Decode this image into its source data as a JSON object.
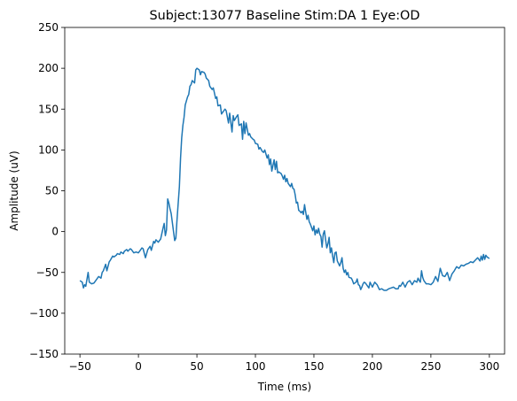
{
  "chart_data": {
    "type": "line",
    "title": "Subject:13077 Baseline Stim:DA 1 Eye:OD",
    "xlabel": "Time (ms)",
    "ylabel": "Amplitude (uV)",
    "xlim": [
      -63,
      313
    ],
    "ylim": [
      -150,
      250
    ],
    "xticks": [
      -50,
      0,
      50,
      100,
      150,
      200,
      250,
      300
    ],
    "yticks": [
      -150,
      -100,
      -50,
      0,
      50,
      100,
      150,
      200,
      250
    ],
    "xtick_labels": [
      "−50",
      "0",
      "50",
      "100",
      "150",
      "200",
      "250",
      "300"
    ],
    "ytick_labels": [
      "−150",
      "−100",
      "−50",
      "0",
      "50",
      "100",
      "150",
      "200",
      "250"
    ],
    "grid": false,
    "line_color": "#1f77b4",
    "series": [
      {
        "x": [
          -50,
          -48,
          -47,
          -46,
          -45,
          -43,
          -42,
          -40,
          -38,
          -36,
          -34,
          -32,
          -31,
          -30,
          -28,
          -27,
          -25,
          -24,
          -22,
          -21,
          -19,
          -18,
          -16,
          -15,
          -13,
          -12,
          -10,
          -9,
          -7,
          -6,
          -4,
          -2,
          0,
          2,
          3,
          4,
          6,
          8,
          10,
          11,
          13,
          14,
          15,
          17,
          19,
          21,
          22,
          23,
          24,
          25,
          26,
          27,
          28,
          30,
          31,
          32,
          33,
          35,
          36,
          37,
          38,
          39,
          40,
          42,
          43,
          44,
          45,
          46,
          48,
          49,
          50,
          52,
          53,
          54,
          56,
          57,
          58,
          60,
          61,
          63,
          64,
          66,
          67,
          68,
          70,
          71,
          72,
          74,
          75,
          77,
          78,
          80,
          81,
          82,
          84,
          85,
          86,
          88,
          89,
          90,
          91,
          92,
          94,
          95,
          96,
          98,
          99,
          100,
          102,
          103,
          104,
          106,
          107,
          108,
          110,
          111,
          112,
          113,
          114,
          116,
          117,
          118,
          119,
          120,
          122,
          123,
          124,
          125,
          126,
          127,
          128,
          130,
          131,
          132,
          133,
          134,
          135,
          136,
          137,
          138,
          139,
          140,
          141,
          142,
          143,
          144,
          145,
          146,
          147,
          148,
          149,
          150,
          151,
          152,
          153,
          154,
          155,
          156,
          157,
          158,
          159,
          160,
          161,
          162,
          163,
          164,
          165,
          166,
          167,
          168,
          169,
          170,
          172,
          173,
          174,
          175,
          176,
          177,
          178,
          179,
          180,
          182,
          183,
          184,
          186,
          187,
          188,
          189,
          190,
          191,
          192,
          193,
          194,
          196,
          197,
          198,
          200,
          202,
          204,
          206,
          208,
          210,
          212,
          214,
          216,
          218,
          220,
          222,
          223,
          224,
          226,
          228,
          230,
          232,
          234,
          236,
          238,
          239,
          240,
          241,
          242,
          243,
          244,
          246,
          248,
          250,
          252,
          254,
          256,
          258,
          260,
          262,
          264,
          266,
          268,
          270,
          272,
          274,
          276,
          278,
          280,
          282,
          284,
          286,
          288,
          290,
          292,
          293,
          294,
          295,
          296,
          297,
          298,
          300
        ],
        "y": [
          -60,
          -62,
          -69,
          -65,
          -67,
          -50,
          -62,
          -64,
          -63,
          -59,
          -55,
          -57,
          -50,
          -48,
          -40,
          -48,
          -37,
          -35,
          -30,
          -31,
          -29,
          -27,
          -28,
          -25,
          -27,
          -24,
          -22,
          -24,
          -21,
          -22,
          -26,
          -25,
          -26,
          -22,
          -20,
          -21,
          -32,
          -22,
          -18,
          -23,
          -12,
          -14,
          -10,
          -13,
          -9,
          4,
          10,
          -5,
          2,
          40,
          35,
          28,
          22,
          0,
          -11,
          -8,
          15,
          55,
          90,
          115,
          130,
          140,
          155,
          165,
          168,
          178,
          180,
          185,
          182,
          198,
          200,
          198,
          192,
          196,
          195,
          193,
          188,
          185,
          178,
          174,
          176,
          163,
          165,
          154,
          155,
          144,
          146,
          150,
          148,
          133,
          145,
          122,
          142,
          136,
          141,
          143,
          130,
          132,
          113,
          135,
          120,
          133,
          118,
          120,
          116,
          113,
          112,
          108,
          107,
          101,
          103,
          98,
          97,
          100,
          90,
          94,
          82,
          89,
          74,
          88,
          76,
          86,
          72,
          73,
          71,
          68,
          64,
          69,
          61,
          65,
          59,
          55,
          59,
          53,
          52,
          45,
          35,
          36,
          26,
          25,
          23,
          25,
          21,
          33,
          24,
          15,
          20,
          12,
          9,
          5,
          1,
          7,
          -4,
          2,
          -2,
          4,
          -3,
          -6,
          -19,
          -3,
          1,
          -10,
          -20,
          -15,
          -7,
          -26,
          -20,
          -30,
          -38,
          -26,
          -25,
          -36,
          -42,
          -38,
          -32,
          -45,
          -50,
          -47,
          -53,
          -50,
          -56,
          -57,
          -60,
          -64,
          -62,
          -58,
          -65,
          -66,
          -71,
          -68,
          -64,
          -62,
          -63,
          -67,
          -69,
          -62,
          -68,
          -62,
          -65,
          -71,
          -70,
          -72,
          -72,
          -70,
          -69,
          -68,
          -70,
          -70,
          -66,
          -67,
          -62,
          -68,
          -62,
          -60,
          -65,
          -60,
          -62,
          -57,
          -60,
          -62,
          -48,
          -56,
          -60,
          -64,
          -64,
          -65,
          -62,
          -55,
          -61,
          -45,
          -54,
          -55,
          -50,
          -60,
          -52,
          -48,
          -43,
          -45,
          -41,
          -42,
          -40,
          -39,
          -37,
          -38,
          -35,
          -32,
          -36,
          -30,
          -35,
          -28,
          -34,
          -29,
          -31,
          -33
        ]
      }
    ]
  }
}
